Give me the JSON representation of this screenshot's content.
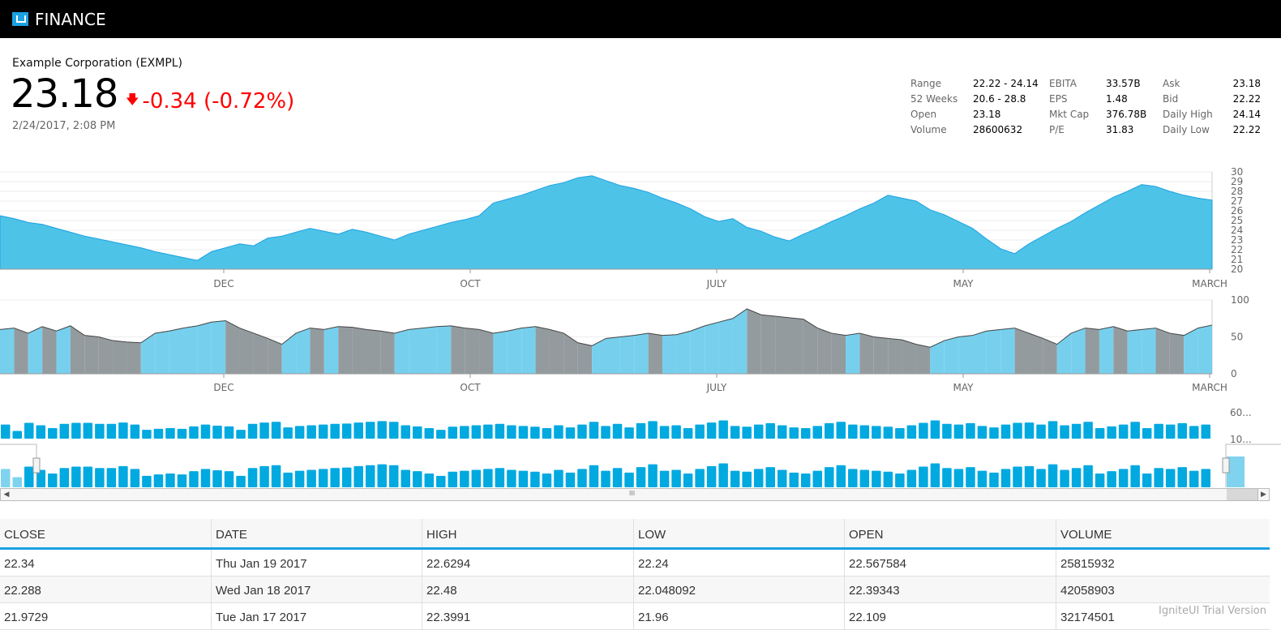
{
  "app": {
    "title": "FINANCE"
  },
  "quote": {
    "company": "Example Corporation (EXMPL)",
    "price": "23.18",
    "change": "-0.34 (-0.72%)",
    "timestamp": "2/24/2017, 2:08 PM",
    "color_down": "#ff0000"
  },
  "stats": [
    [
      "Range",
      "22.22 - 24.14",
      "EBITA",
      "33.57B",
      "Ask",
      "23.18"
    ],
    [
      "52 Weeks",
      "20.6 - 28.8",
      "EPS",
      "1.48",
      "Bid",
      "22.22"
    ],
    [
      "Open",
      "23.18",
      "Mkt Cap",
      "376.78B",
      "Daily High",
      "24.14"
    ],
    [
      "Volume",
      "28600632",
      "P/E",
      "31.83",
      "Daily Low",
      "22.22"
    ]
  ],
  "chart_data": [
    {
      "type": "area",
      "name": "price",
      "ylim": [
        20,
        30
      ],
      "yticks": [
        "30",
        "29",
        "28",
        "27",
        "26",
        "25",
        "24",
        "23",
        "22",
        "21",
        "20"
      ],
      "xticks": [
        "DEC",
        "OCT",
        "JULY",
        "MAY",
        "MARCH"
      ],
      "values": [
        25.5,
        25.2,
        24.8,
        24.6,
        24.2,
        23.8,
        23.4,
        23.1,
        22.8,
        22.5,
        22.2,
        21.8,
        21.5,
        21.2,
        20.9,
        21.8,
        22.2,
        22.6,
        22.4,
        23.2,
        23.4,
        23.8,
        24.2,
        23.9,
        23.6,
        24.1,
        23.8,
        23.4,
        23.0,
        23.6,
        24.0,
        24.4,
        24.8,
        25.1,
        25.5,
        26.8,
        27.2,
        27.6,
        28.1,
        28.6,
        28.9,
        29.4,
        29.6,
        29.1,
        28.6,
        28.3,
        27.9,
        27.3,
        26.8,
        26.2,
        25.4,
        24.9,
        25.2,
        24.3,
        23.9,
        23.3,
        22.9,
        23.6,
        24.2,
        24.9,
        25.5,
        26.2,
        26.8,
        27.6,
        27.3,
        27.0,
        26.1,
        25.6,
        24.9,
        24.2,
        23.1,
        22.1,
        21.6,
        22.6,
        23.4,
        24.2,
        24.9,
        25.8,
        26.6,
        27.4,
        28.0,
        28.7,
        28.5,
        28.0,
        27.6,
        27.3,
        27.1
      ]
    },
    {
      "type": "area",
      "name": "indicator",
      "ylim": [
        0,
        100
      ],
      "yticks": [
        "100",
        "50",
        "0"
      ],
      "xticks": [
        "DEC",
        "OCT",
        "JULY",
        "MAY",
        "MARCH"
      ],
      "values": [
        60,
        62,
        55,
        64,
        58,
        65,
        52,
        50,
        45,
        43,
        42,
        55,
        58,
        62,
        65,
        70,
        72,
        62,
        55,
        48,
        40,
        55,
        62,
        60,
        64,
        63,
        60,
        58,
        55,
        60,
        62,
        64,
        65,
        62,
        60,
        55,
        58,
        62,
        64,
        60,
        55,
        42,
        38,
        48,
        50,
        52,
        55,
        52,
        53,
        58,
        65,
        70,
        75,
        88,
        80,
        78,
        76,
        74,
        62,
        55,
        52,
        55,
        50,
        48,
        46,
        40,
        36,
        45,
        50,
        52,
        58,
        60,
        62,
        55,
        48,
        40,
        55,
        62,
        60,
        64,
        58,
        60,
        62,
        55,
        52,
        62,
        66
      ]
    },
    {
      "type": "bar",
      "name": "volume",
      "yticks": [
        "60...",
        "10..."
      ],
      "values": [
        40,
        22,
        45,
        38,
        30,
        42,
        45,
        45,
        42,
        42,
        46,
        40,
        25,
        28,
        30,
        28,
        35,
        40,
        37,
        35,
        25,
        42,
        46,
        48,
        32,
        36,
        38,
        40,
        42,
        43,
        46,
        48,
        50,
        48,
        38,
        35,
        30,
        25,
        34,
        36,
        38,
        40,
        42,
        38,
        36,
        34,
        30,
        38,
        32,
        40,
        48,
        36,
        42,
        32,
        44,
        50,
        36,
        38,
        30,
        40,
        46,
        52,
        36,
        34,
        40,
        44,
        38,
        32,
        30,
        36,
        44,
        48,
        40,
        38,
        36,
        34,
        30,
        38,
        45,
        52,
        42,
        40,
        44,
        36,
        32,
        40,
        45,
        46,
        40,
        50,
        38,
        42,
        48,
        30,
        35,
        40,
        48,
        30,
        42,
        40,
        44,
        36,
        40
      ]
    }
  ],
  "scrollbar": {
    "left": "◀",
    "right": "▶",
    "grip": "III"
  },
  "table": {
    "headers": [
      "CLOSE",
      "DATE",
      "HIGH",
      "LOW",
      "OPEN",
      "VOLUME"
    ],
    "rows": [
      [
        "22.34",
        "Thu Jan 19 2017",
        "22.6294",
        "22.24",
        "22.567584",
        "25815932"
      ],
      [
        "22.288",
        "Wed Jan 18 2017",
        "22.48",
        "22.048092",
        "22.39343",
        "42058903"
      ],
      [
        "21.9729",
        "Tue Jan 17 2017",
        "22.3991",
        "21.96",
        "22.109",
        "32174501"
      ]
    ]
  },
  "watermark": "IgniteUI Trial Version",
  "colors": {
    "accent": "#1ba1e2",
    "area": "#4ec3e8",
    "gray": "#8e969a",
    "bar": "#00a9e0"
  }
}
